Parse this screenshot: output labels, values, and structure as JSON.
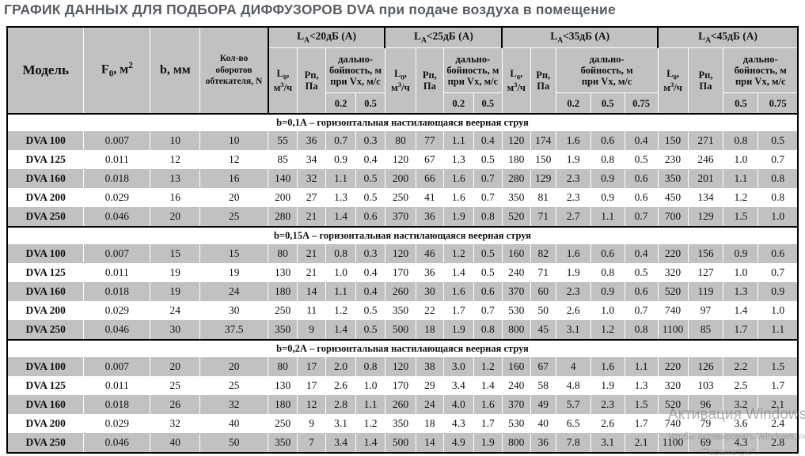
{
  "page_title": "ГРАФИК ДАННЫХ ДЛЯ ПОДБОРА ДИФФУЗОРОВ DVA при подаче воздуха в помещение",
  "colors": {
    "row_gray": "#c1c1c1",
    "title_text": "#585d63",
    "border_black": "#000000"
  },
  "watermark": {
    "line1": "Активация Windows",
    "line2": "Чтобы активировать Windows, перейдите в раздел",
    "line3": "\"Параметры\"."
  },
  "table": {
    "left_headers": {
      "model": "Модель",
      "f0": {
        "base": "F",
        "sub": "0",
        "rest": ", м",
        "sup": "2"
      },
      "b": "b, мм",
      "n": "Кол-во оборотов обтекателя, N"
    },
    "sub_headers": {
      "l0": {
        "base": "L",
        "sub": "0",
        "comma": ",",
        "unit_base": "м",
        "unit_sup": "3",
        "unit_rest": "/ч"
      },
      "pn": {
        "line1": "Рп,",
        "line2": "Па"
      },
      "range": {
        "line1": "дально-",
        "line2": "бойность, м",
        "line3": "при Vx, м/с"
      }
    },
    "groups": [
      {
        "base": "L",
        "sub": "A",
        "rest": "<20дБ (А)",
        "velocities": [
          "0.2",
          "0.5"
        ]
      },
      {
        "base": "L",
        "sub": "A",
        "rest": "<25дБ (А)",
        "velocities": [
          "0.2",
          "0.5"
        ]
      },
      {
        "base": "L",
        "sub": "A",
        "rest": "<35дБ (А)",
        "velocities": [
          "0.2",
          "0.5",
          "0.75"
        ]
      },
      {
        "base": "L",
        "sub": "A",
        "rest": "<45дБ (А)",
        "velocities": [
          "0.5",
          "0.75"
        ]
      }
    ],
    "sections": [
      {
        "title": "b=0,1А  – горизонтальная настилающаяся веерная струя",
        "rows": [
          {
            "model": "DVA 100",
            "f0": "0.007",
            "b": "10",
            "n": "10",
            "values": [
              "55",
              "36",
              "0.7",
              "0.3",
              "80",
              "77",
              "1.1",
              "0.4",
              "120",
              "174",
              "1.6",
              "0.6",
              "0.4",
              "150",
              "271",
              "0.8",
              "0.5"
            ]
          },
          {
            "model": "DVA 125",
            "f0": "0.011",
            "b": "12",
            "n": "12",
            "values": [
              "85",
              "34",
              "0.9",
              "0.4",
              "120",
              "67",
              "1.3",
              "0.5",
              "180",
              "150",
              "1.9",
              "0.8",
              "0.5",
              "230",
              "246",
              "1.0",
              "0.7"
            ]
          },
          {
            "model": "DVA 160",
            "f0": "0.018",
            "b": "13",
            "n": "16",
            "values": [
              "140",
              "32",
              "1.1",
              "0.5",
              "200",
              "66",
              "1.6",
              "0.7",
              "280",
              "129",
              "2.3",
              "0.9",
              "0.6",
              "350",
              "201",
              "1.1",
              "0.8"
            ]
          },
          {
            "model": "DVA 200",
            "f0": "0.029",
            "b": "16",
            "n": "20",
            "values": [
              "200",
              "27",
              "1.3",
              "0.5",
              "250",
              "41",
              "1.6",
              "0.7",
              "350",
              "81",
              "2.3",
              "0.9",
              "0.6",
              "450",
              "134",
              "1.2",
              "0.8"
            ]
          },
          {
            "model": "DVA 250",
            "f0": "0.046",
            "b": "20",
            "n": "25",
            "values": [
              "280",
              "21",
              "1.4",
              "0.6",
              "370",
              "36",
              "1.9",
              "0.8",
              "520",
              "71",
              "2.7",
              "1.1",
              "0.7",
              "700",
              "129",
              "1.5",
              "1.0"
            ]
          }
        ]
      },
      {
        "title": "b=0,15А  – горизонтальная настилающаяся веерная струя",
        "rows": [
          {
            "model": "DVA 100",
            "f0": "0.007",
            "b": "15",
            "n": "15",
            "values": [
              "80",
              "21",
              "0.8",
              "0.3",
              "120",
              "46",
              "1.2",
              "0.5",
              "160",
              "82",
              "1.6",
              "0.6",
              "0.4",
              "220",
              "156",
              "0.9",
              "0.6"
            ]
          },
          {
            "model": "DVA 125",
            "f0": "0.011",
            "b": "19",
            "n": "19",
            "values": [
              "130",
              "21",
              "1.0",
              "0.4",
              "170",
              "36",
              "1.4",
              "0.5",
              "240",
              "71",
              "1.9",
              "0.8",
              "0.5",
              "320",
              "127",
              "1.0",
              "0.7"
            ]
          },
          {
            "model": "DVA 160",
            "f0": "0.018",
            "b": "19",
            "n": "24",
            "values": [
              "180",
              "14",
              "1.1",
              "0.4",
              "260",
              "30",
              "1.6",
              "0.6",
              "370",
              "60",
              "2.3",
              "0.9",
              "0.6",
              "520",
              "119",
              "1.3",
              "0.9"
            ]
          },
          {
            "model": "DVA 200",
            "f0": "0.029",
            "b": "24",
            "n": "30",
            "values": [
              "250",
              "11",
              "1.2",
              "0.5",
              "350",
              "22",
              "1.7",
              "0.7",
              "530",
              "50",
              "2.6",
              "1.0",
              "0.7",
              "740",
              "97",
              "1.4",
              "1.0"
            ]
          },
          {
            "model": "DVA 250",
            "f0": "0.046",
            "b": "30",
            "n": "37.5",
            "values": [
              "350",
              "9",
              "1.4",
              "0.5",
              "500",
              "18",
              "1.9",
              "0.8",
              "800",
              "45",
              "3.1",
              "1.2",
              "0.8",
              "1100",
              "85",
              "1.7",
              "1.1"
            ]
          }
        ]
      },
      {
        "title": "b=0,2А  – горизонтальная настилающаяся веерная струя",
        "rows": [
          {
            "model": "DVA 100",
            "f0": "0.007",
            "b": "20",
            "n": "20",
            "values": [
              "80",
              "17",
              "2.0",
              "0.8",
              "120",
              "38",
              "3.0",
              "1.2",
              "160",
              "67",
              "4",
              "1.6",
              "1.1",
              "220",
              "126",
              "2.2",
              "1.5"
            ]
          },
          {
            "model": "DVA 125",
            "f0": "0.011",
            "b": "25",
            "n": "25",
            "values": [
              "130",
              "17",
              "2.6",
              "1.0",
              "170",
              "29",
              "3.4",
              "1.4",
              "240",
              "58",
              "4.8",
              "1.9",
              "1.3",
              "320",
              "103",
              "2.5",
              "1.7"
            ]
          },
          {
            "model": "DVA 160",
            "f0": "0.018",
            "b": "26",
            "n": "32",
            "values": [
              "180",
              "12",
              "2.8",
              "1.1",
              "260",
              "24",
              "4.0",
              "1.6",
              "370",
              "49",
              "5.7",
              "2.3",
              "1.5",
              "520",
              "96",
              "3.2",
              "2.1"
            ]
          },
          {
            "model": "DVA 200",
            "f0": "0.029",
            "b": "32",
            "n": "40",
            "values": [
              "250",
              "9",
              "3.1",
              "1.2",
              "350",
              "18",
              "4.3",
              "1.7",
              "530",
              "40",
              "6.5",
              "2.6",
              "1.7",
              "740",
              "79",
              "3.6",
              "2.4"
            ]
          },
          {
            "model": "DVA 250",
            "f0": "0.046",
            "b": "40",
            "n": "50",
            "values": [
              "350",
              "7",
              "3.4",
              "1.4",
              "500",
              "14",
              "4.9",
              "1.9",
              "800",
              "36",
              "7.8",
              "3.1",
              "2.1",
              "1100",
              "69",
              "4.3",
              "2.8"
            ]
          }
        ]
      }
    ]
  }
}
